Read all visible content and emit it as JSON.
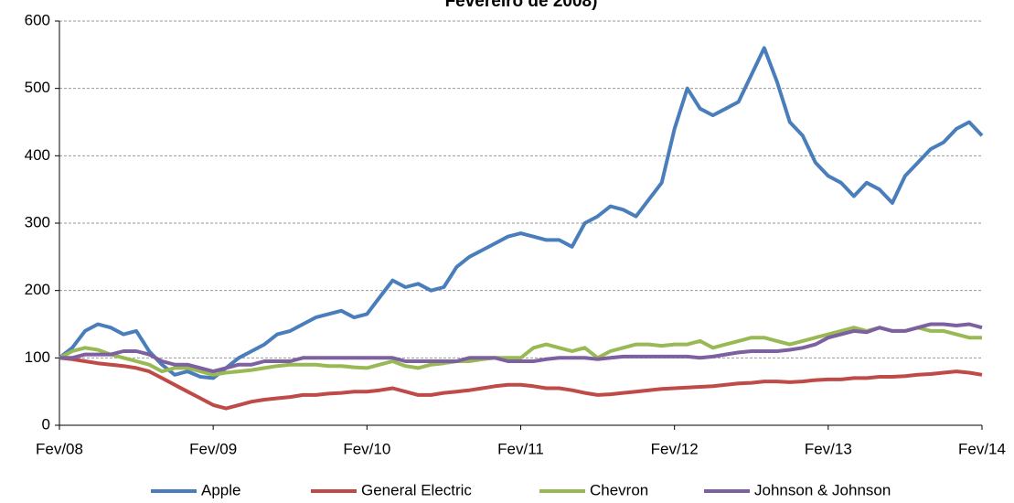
{
  "chart_data": {
    "type": "line",
    "title": "Fevereiro de 2008)",
    "categories": [
      "Fev/08",
      null,
      null,
      null,
      null,
      null,
      null,
      null,
      null,
      null,
      null,
      null,
      "Fev/09",
      null,
      null,
      null,
      null,
      null,
      null,
      null,
      null,
      null,
      null,
      null,
      "Fev/10",
      null,
      null,
      null,
      null,
      null,
      null,
      null,
      null,
      null,
      null,
      null,
      "Fev/11",
      null,
      null,
      null,
      null,
      null,
      null,
      null,
      null,
      null,
      null,
      null,
      "Fev/12",
      null,
      null,
      null,
      null,
      null,
      null,
      null,
      null,
      null,
      null,
      null,
      "Fev/13",
      null,
      null,
      null,
      null,
      null,
      null,
      null,
      null,
      null,
      null,
      null,
      "Fev/14"
    ],
    "series": [
      {
        "name": "Apple",
        "color": "#4a7ebb",
        "values": [
          100,
          115,
          140,
          150,
          145,
          135,
          140,
          110,
          90,
          75,
          80,
          72,
          70,
          85,
          100,
          110,
          120,
          135,
          140,
          150,
          160,
          165,
          170,
          160,
          165,
          190,
          215,
          205,
          210,
          200,
          205,
          235,
          250,
          260,
          270,
          280,
          285,
          280,
          275,
          275,
          265,
          300,
          310,
          325,
          320,
          310,
          335,
          360,
          440,
          500,
          470,
          460,
          470,
          480,
          520,
          560,
          510,
          450,
          430,
          390,
          370,
          360,
          340,
          360,
          350,
          330,
          370,
          390,
          410,
          420,
          440,
          450,
          430
        ]
      },
      {
        "name": "General Electric",
        "color": "#be4b48",
        "values": [
          100,
          98,
          95,
          92,
          90,
          88,
          85,
          80,
          70,
          60,
          50,
          40,
          30,
          25,
          30,
          35,
          38,
          40,
          42,
          45,
          45,
          47,
          48,
          50,
          50,
          52,
          55,
          50,
          45,
          45,
          48,
          50,
          52,
          55,
          58,
          60,
          60,
          58,
          55,
          55,
          52,
          48,
          45,
          46,
          48,
          50,
          52,
          54,
          55,
          56,
          57,
          58,
          60,
          62,
          63,
          65,
          65,
          64,
          65,
          67,
          68,
          68,
          70,
          70,
          72,
          72,
          73,
          75,
          76,
          78,
          80,
          78,
          75
        ]
      },
      {
        "name": "Chevron",
        "color": "#98b954",
        "values": [
          100,
          110,
          115,
          112,
          105,
          100,
          95,
          90,
          80,
          85,
          85,
          80,
          75,
          78,
          80,
          82,
          85,
          88,
          90,
          90,
          90,
          88,
          88,
          86,
          85,
          90,
          95,
          88,
          85,
          90,
          92,
          95,
          95,
          98,
          100,
          100,
          100,
          115,
          120,
          115,
          110,
          115,
          100,
          110,
          115,
          120,
          120,
          118,
          120,
          120,
          125,
          115,
          120,
          125,
          130,
          130,
          125,
          120,
          125,
          130,
          135,
          140,
          145,
          140,
          145,
          140,
          140,
          145,
          140,
          140,
          135,
          130,
          130
        ]
      },
      {
        "name": "Johnson & Johnson",
        "color": "#7d60a0",
        "values": [
          100,
          100,
          105,
          105,
          105,
          110,
          110,
          105,
          95,
          90,
          90,
          85,
          80,
          85,
          90,
          90,
          95,
          95,
          95,
          100,
          100,
          100,
          100,
          100,
          100,
          100,
          100,
          95,
          95,
          95,
          95,
          95,
          100,
          100,
          100,
          95,
          95,
          95,
          98,
          100,
          100,
          100,
          98,
          100,
          102,
          102,
          102,
          102,
          102,
          102,
          100,
          102,
          105,
          108,
          110,
          110,
          110,
          112,
          115,
          120,
          130,
          135,
          140,
          138,
          145,
          140,
          140,
          145,
          150,
          150,
          148,
          150,
          145
        ]
      }
    ],
    "ylim": [
      0,
      600
    ],
    "yticks": [
      0,
      100,
      200,
      300,
      400,
      500,
      600
    ],
    "grid": true,
    "legend": "bottom"
  }
}
